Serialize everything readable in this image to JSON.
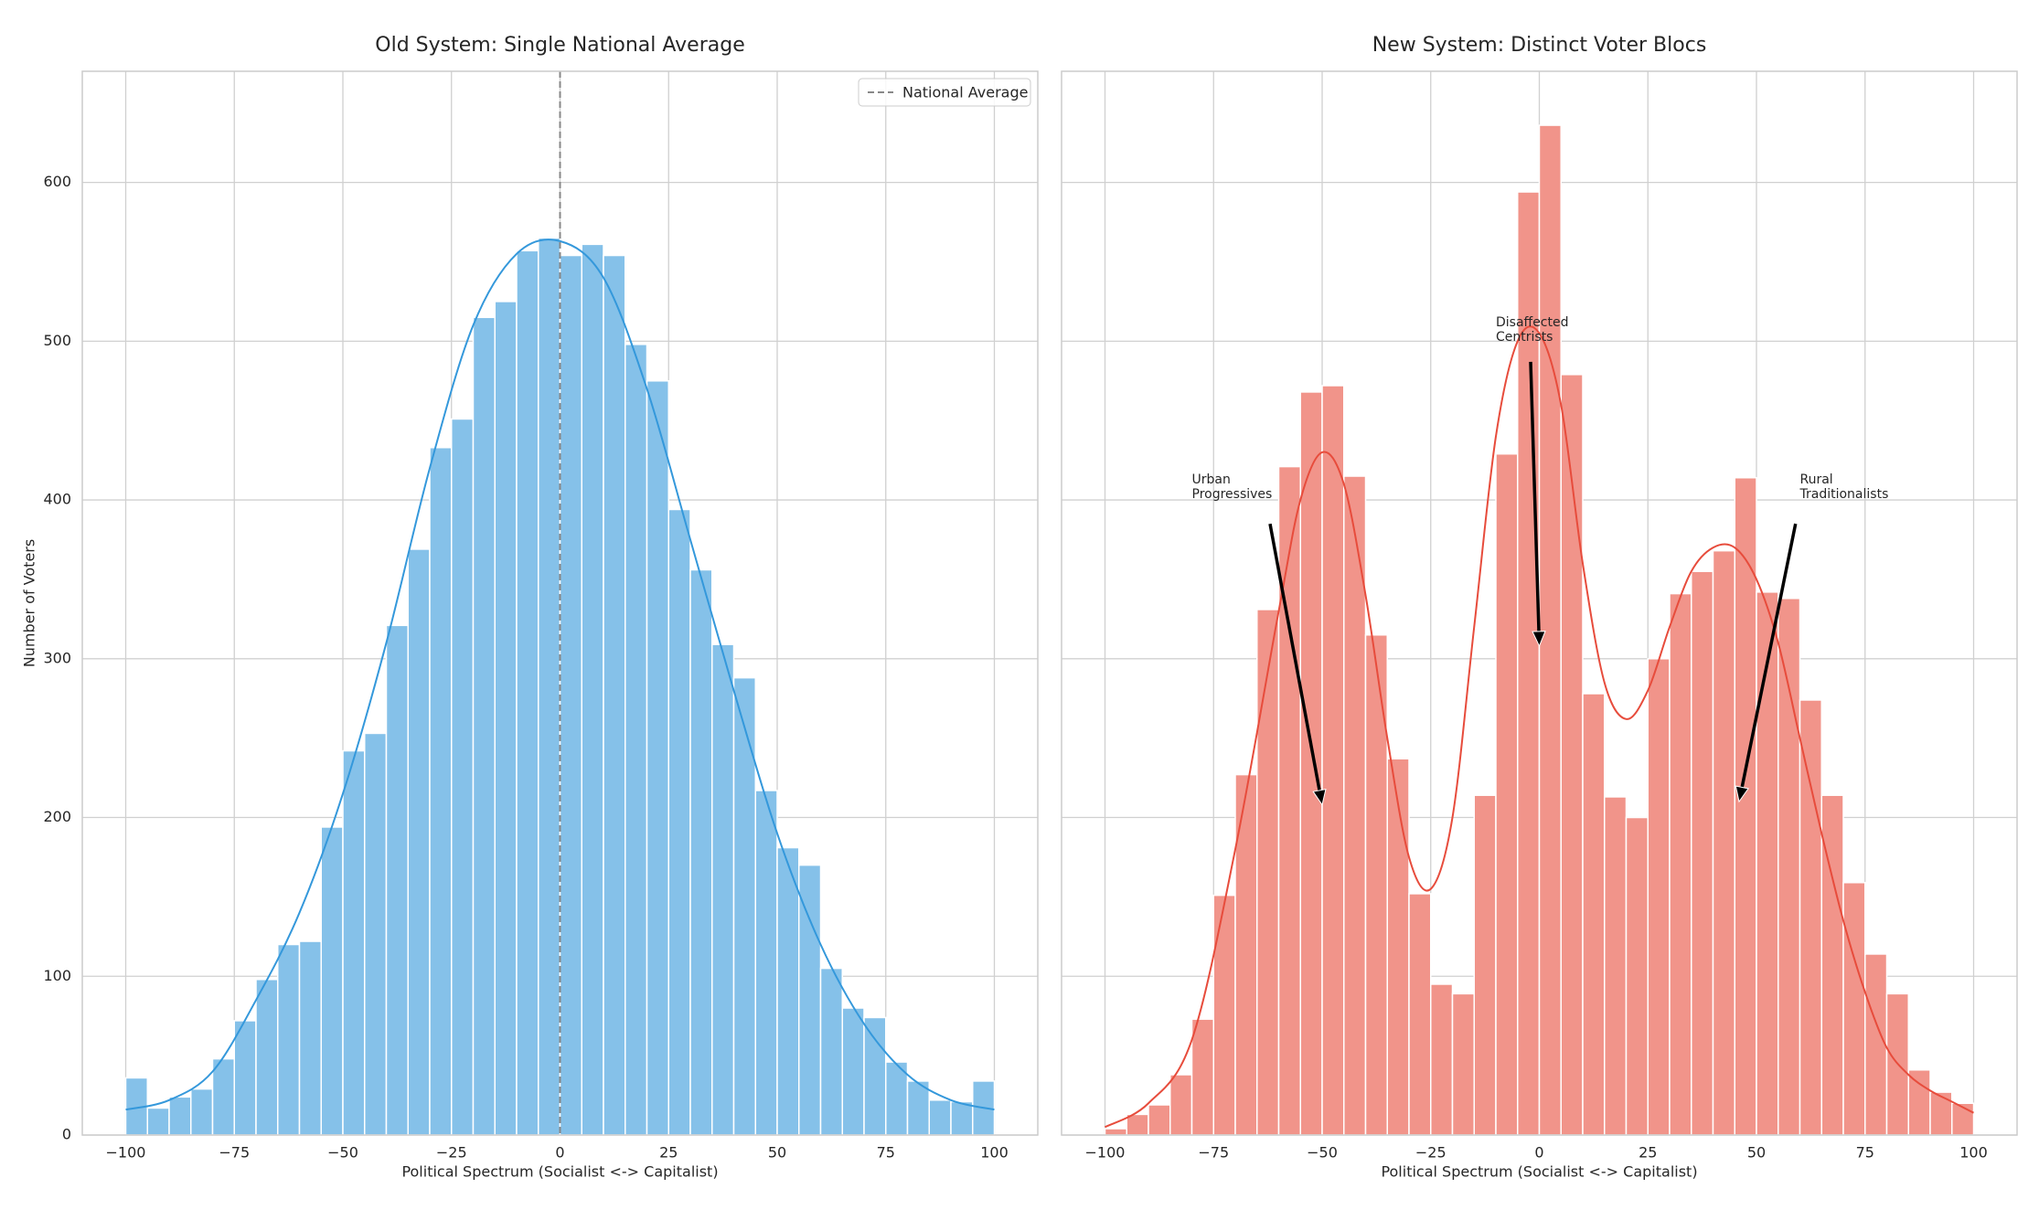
{
  "chart_data": [
    {
      "type": "histogram",
      "title": "Old System: Single National Average",
      "xlabel": "Political Spectrum (Socialist <-> Capitalist)",
      "ylabel": "Number of Voters",
      "bins": [
        -100,
        -95,
        -90,
        -85,
        -80,
        -75,
        -70,
        -65,
        -60,
        -55,
        -50,
        -45,
        -40,
        -35,
        -30,
        -25,
        -20,
        -15,
        -10,
        -5,
        0,
        5,
        10,
        15,
        20,
        25,
        30,
        35,
        40,
        45,
        50,
        55,
        60,
        65,
        70,
        75,
        80,
        85,
        90,
        95,
        100
      ],
      "values": [
        36,
        17,
        24,
        29,
        48,
        72,
        98,
        120,
        122,
        194,
        242,
        253,
        321,
        369,
        433,
        451,
        515,
        525,
        557,
        565,
        554,
        561,
        554,
        498,
        475,
        394,
        356,
        309,
        288,
        217,
        181,
        170,
        105,
        80,
        74,
        46,
        34,
        22,
        21,
        34
      ],
      "color": "#85c1e9",
      "kde": {
        "color": "#3498db",
        "x": [
          -100,
          -90,
          -80,
          -70,
          -60,
          -50,
          -40,
          -30,
          -20,
          -10,
          0,
          10,
          20,
          30,
          40,
          50,
          60,
          70,
          80,
          90,
          100
        ],
        "y": [
          16,
          22,
          40,
          85,
          140,
          215,
          310,
          420,
          510,
          555,
          563,
          540,
          470,
          375,
          280,
          190,
          120,
          70,
          38,
          22,
          16
        ]
      },
      "vline": {
        "x": 0,
        "label": "National Average",
        "color": "#888888"
      },
      "legend": "upper right",
      "xlim": [
        -110,
        110
      ],
      "ylim": [
        0,
        670
      ],
      "xticks": [
        {
          "value": -100,
          "label": "−100"
        },
        {
          "value": -75,
          "label": "−75"
        },
        {
          "value": -50,
          "label": "−50"
        },
        {
          "value": -25,
          "label": "−25"
        },
        0,
        25,
        50,
        75,
        100
      ],
      "yticks": [
        0,
        100,
        200,
        300,
        400,
        500,
        600
      ],
      "show_yticklabels": true,
      "grid": true
    },
    {
      "type": "histogram",
      "title": "New System: Distinct Voter Blocs",
      "xlabel": "Political Spectrum (Socialist <-> Capitalist)",
      "bins": [
        -100,
        -95,
        -90,
        -85,
        -80,
        -75,
        -70,
        -65,
        -60,
        -55,
        -50,
        -45,
        -40,
        -35,
        -30,
        -25,
        -20,
        -15,
        -10,
        -5,
        0,
        5,
        10,
        15,
        20,
        25,
        30,
        35,
        40,
        45,
        50,
        55,
        60,
        65,
        70,
        75,
        80,
        85,
        90,
        95,
        100
      ],
      "values": [
        4,
        13,
        19,
        38,
        73,
        151,
        227,
        331,
        421,
        468,
        472,
        415,
        315,
        237,
        152,
        95,
        89,
        214,
        429,
        594,
        636,
        479,
        278,
        213,
        200,
        300,
        341,
        355,
        368,
        414,
        342,
        338,
        274,
        214,
        159,
        114,
        89,
        41,
        27,
        20
      ],
      "color": "#f1948a",
      "kde": {
        "color": "#e74c3c",
        "x": [
          -100,
          -90,
          -80,
          -70,
          -60,
          -55,
          -50,
          -45,
          -40,
          -35,
          -30,
          -25,
          -20,
          -15,
          -10,
          -5,
          0,
          5,
          10,
          15,
          20,
          25,
          30,
          35,
          40,
          45,
          50,
          55,
          60,
          65,
          70,
          75,
          80,
          85,
          90,
          95,
          100
        ],
        "y": [
          5,
          20,
          60,
          180,
          330,
          400,
          430,
          410,
          340,
          250,
          175,
          155,
          200,
          320,
          440,
          500,
          505,
          460,
          360,
          285,
          262,
          280,
          320,
          355,
          370,
          370,
          350,
          310,
          250,
          190,
          135,
          90,
          55,
          38,
          28,
          21,
          14
        ]
      },
      "annotations": [
        {
          "text": [
            "Urban",
            "Progressives"
          ],
          "text_xy": [
            -80,
            408
          ],
          "arrow": [
            [
              -62,
              385
            ],
            [
              -50,
              208
            ]
          ]
        },
        {
          "text": [
            "Disaffected",
            "Centrists"
          ],
          "text_xy": [
            -10,
            507
          ],
          "arrow": [
            [
              -2,
              487
            ],
            [
              0,
              308
            ]
          ]
        },
        {
          "text": [
            "Rural",
            "Traditionalists"
          ],
          "text_xy": [
            60,
            408
          ],
          "arrow": [
            [
              59,
              385
            ],
            [
              46,
              210
            ]
          ]
        }
      ],
      "xlim": [
        -110,
        110
      ],
      "ylim": [
        0,
        670
      ],
      "xticks": [
        {
          "value": -100,
          "label": "−100"
        },
        {
          "value": -75,
          "label": "−75"
        },
        {
          "value": -50,
          "label": "−50"
        },
        {
          "value": -25,
          "label": "−25"
        },
        0,
        25,
        50,
        75,
        100
      ],
      "yticks": [
        0,
        100,
        200,
        300,
        400,
        500,
        600
      ],
      "show_yticklabels": false,
      "grid": true
    }
  ]
}
